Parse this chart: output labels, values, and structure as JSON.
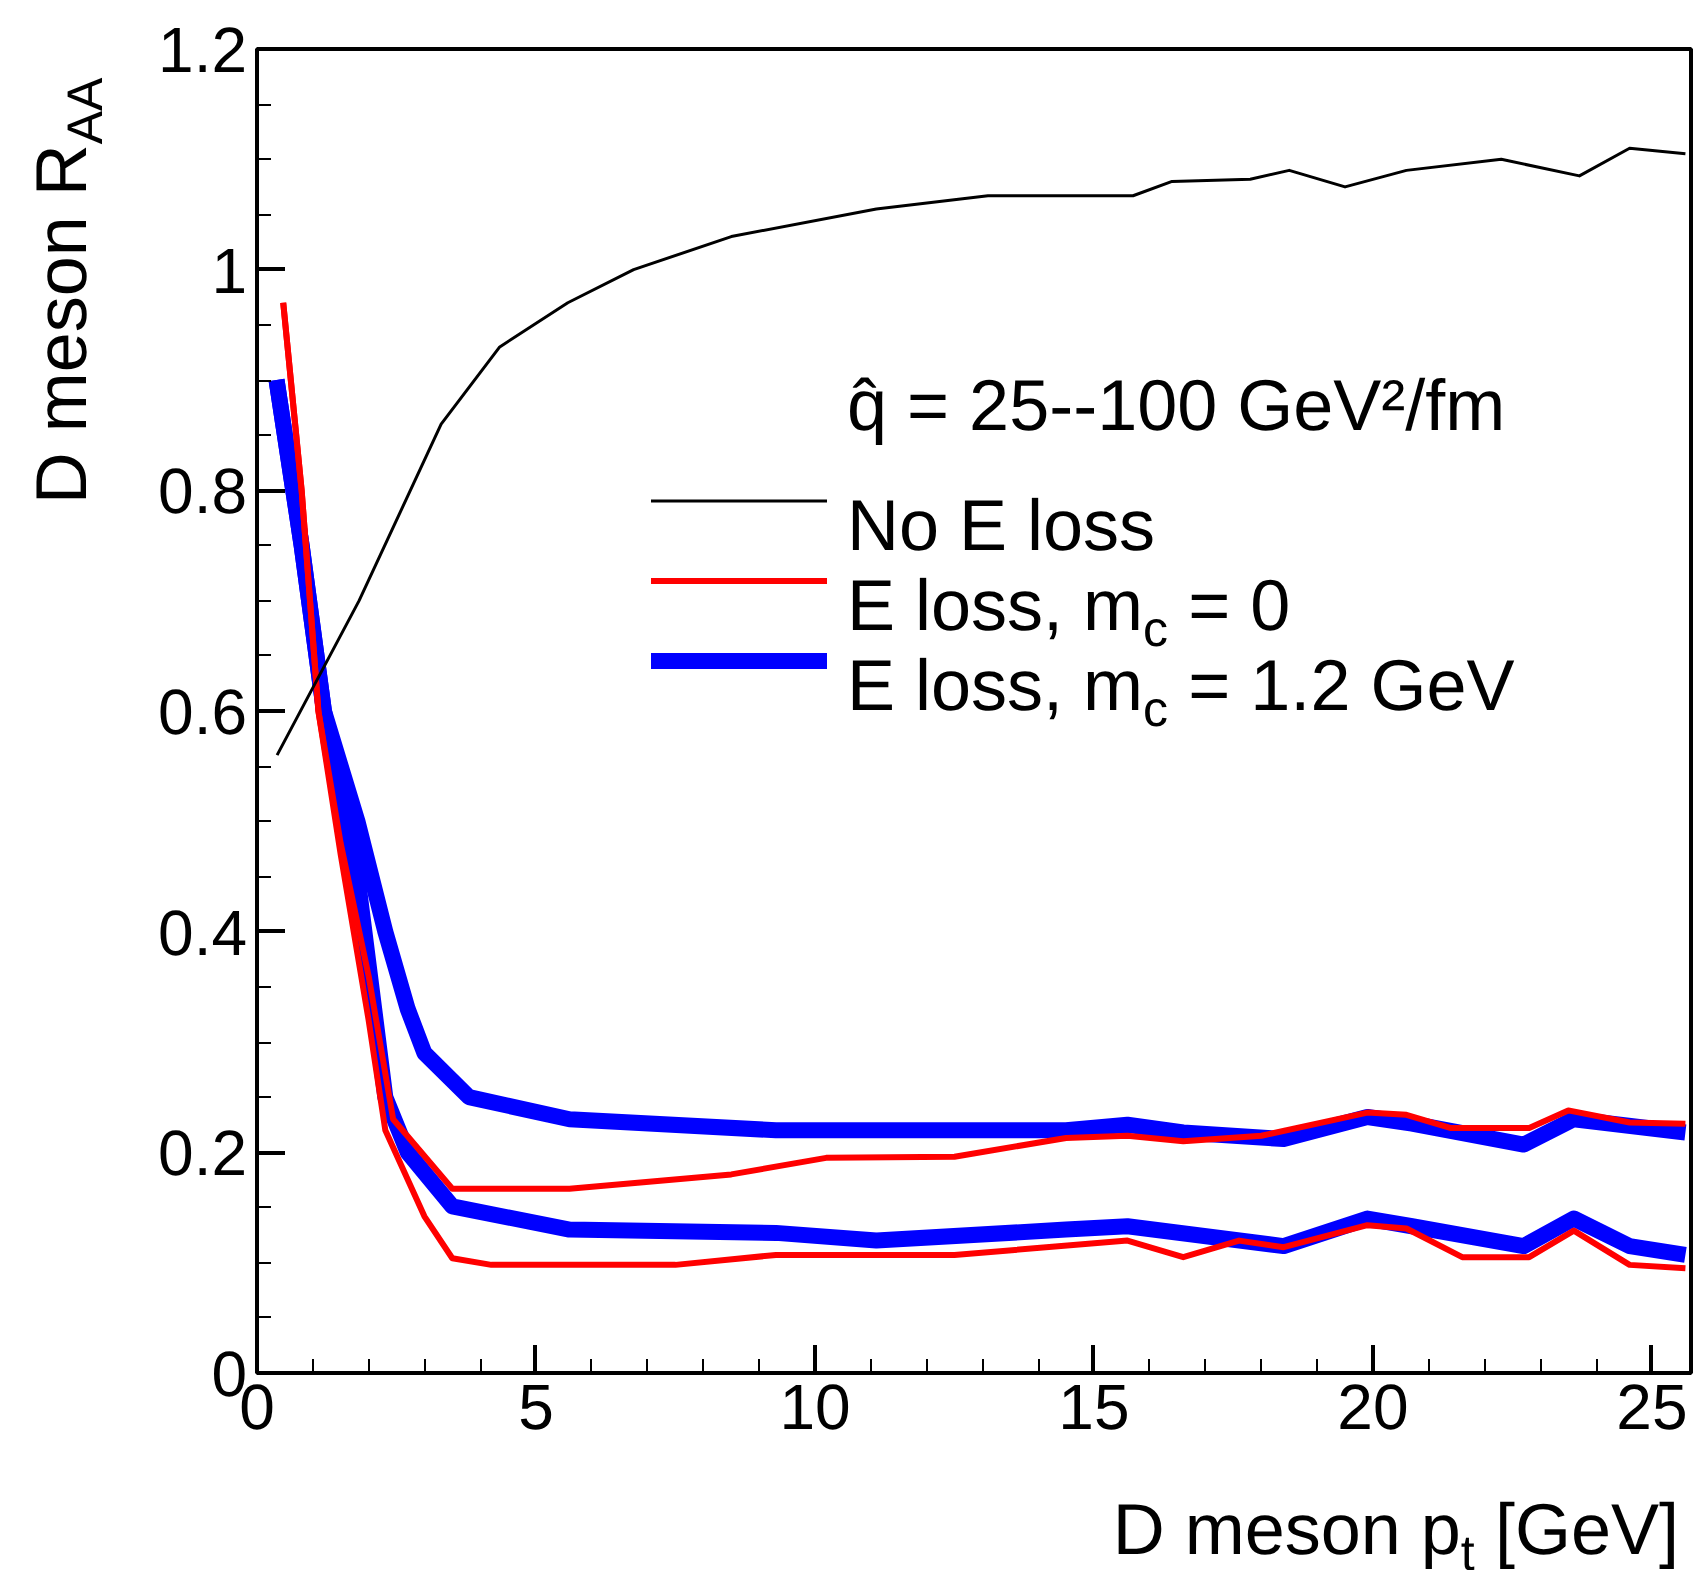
{
  "chart_data": {
    "type": "line",
    "xlabel": "D meson p$_{t}$ [GeV]",
    "ylabel": "D meson R$_{AA}$",
    "legend_title": "q̂ = 25--100 GeV²/fm",
    "xlim": [
      0,
      25.7
    ],
    "ylim": [
      0,
      1.2
    ],
    "xticks": [
      0,
      5,
      10,
      15,
      20,
      25
    ],
    "yticks": [
      0,
      0.2,
      0.4,
      0.6,
      0.8,
      1,
      1.2
    ],
    "grid": false,
    "legend": "top right",
    "marker": "none",
    "line_style": "solid",
    "series": [
      {
        "name": "No E loss",
        "color": "#000000",
        "x": [
          0.36,
          1.83,
          3.3,
          4.35,
          5.57,
          6.75,
          8.5,
          11.1,
          13.1,
          15.7,
          16.4,
          17.8,
          18.5,
          19.5,
          20.6,
          22.3,
          23.7,
          24.6,
          25.6
        ],
        "values": [
          0.56,
          0.7,
          0.86,
          0.93,
          0.97,
          1.0,
          1.03,
          1.055,
          1.067,
          1.067,
          1.08,
          1.082,
          1.09,
          1.075,
          1.09,
          1.1,
          1.085,
          1.11,
          1.105
        ]
      },
      {
        "name": "E loss, m$_{c}$ = 0",
        "color": "#ff0000",
        "x": [
          0.47,
          0.8,
          1.1,
          1.5,
          2.0,
          2.44,
          3.5,
          5.6,
          8.5,
          10.2,
          12.5,
          14.5,
          15.6,
          16.6,
          18.0,
          19.9,
          20.6,
          21.4,
          22.8,
          23.5,
          24.6,
          25.6
        ],
        "values": [
          0.97,
          0.8,
          0.6,
          0.48,
          0.36,
          0.23,
          0.167,
          0.167,
          0.18,
          0.195,
          0.196,
          0.213,
          0.215,
          0.21,
          0.215,
          0.236,
          0.234,
          0.222,
          0.222,
          0.238,
          0.227,
          0.226
        ]
      },
      {
        "color": "#ff0000",
        "x": [
          0.47,
          0.8,
          1.1,
          1.5,
          2.0,
          2.3,
          3.0,
          3.5,
          4.2,
          7.5,
          9.3,
          12.5,
          15.6,
          16.6,
          17.6,
          18.4,
          19.9,
          20.6,
          21.6,
          22.8,
          23.6,
          24.6,
          25.6
        ],
        "values": [
          0.97,
          0.8,
          0.6,
          0.47,
          0.32,
          0.22,
          0.142,
          0.104,
          0.098,
          0.098,
          0.107,
          0.107,
          0.12,
          0.105,
          0.12,
          0.114,
          0.134,
          0.131,
          0.105,
          0.105,
          0.129,
          0.098,
          0.095
        ]
      },
      {
        "name": "E loss, m$_{c}$ = 1.2 GeV",
        "color": "#0000ff",
        "x": [
          0.35,
          0.8,
          1.2,
          1.8,
          2.3,
          2.7,
          3.0,
          3.8,
          5.6,
          9.3,
          14.5,
          15.6,
          16.6,
          18.4,
          19.9,
          20.7,
          22.7,
          23.6,
          25.6
        ],
        "values": [
          0.9,
          0.75,
          0.6,
          0.5,
          0.4,
          0.33,
          0.29,
          0.25,
          0.23,
          0.22,
          0.22,
          0.225,
          0.218,
          0.212,
          0.232,
          0.226,
          0.207,
          0.23,
          0.218
        ]
      },
      {
        "color": "#0000ff",
        "x": [
          0.35,
          0.8,
          1.2,
          1.8,
          2.3,
          2.7,
          3.5,
          5.6,
          9.3,
          11.1,
          14.5,
          15.6,
          18.4,
          19.9,
          20.7,
          22.7,
          23.6,
          24.6,
          25.6
        ],
        "values": [
          0.9,
          0.75,
          0.6,
          0.45,
          0.25,
          0.2,
          0.151,
          0.13,
          0.127,
          0.12,
          0.13,
          0.133,
          0.115,
          0.14,
          0.133,
          0.115,
          0.14,
          0.115,
          0.107
        ]
      }
    ]
  }
}
